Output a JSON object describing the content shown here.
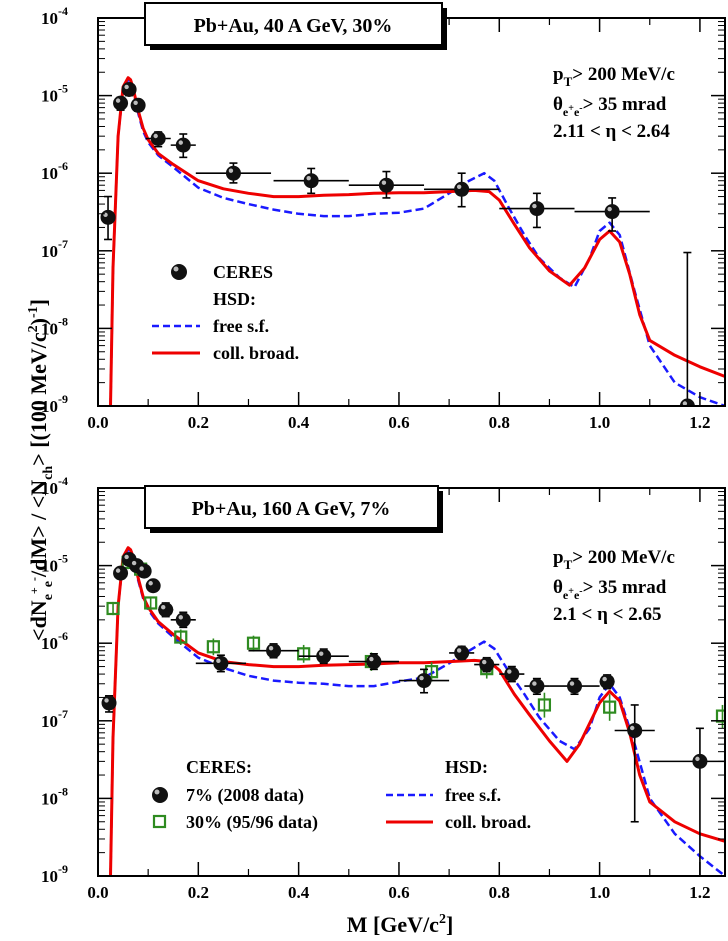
{
  "figure": {
    "ylabel_main": "<dN",
    "ylabel_sub": "e",
    "ylabel_sup1": "+",
    "ylabel_sub2": "e",
    "ylabel_sup2": "-",
    "ylabel_rest": "/dM> / <N",
    "ylabel_ch": "ch",
    "ylabel_end": "> [(100 MeV/c",
    "ylabel_2": "2",
    "ylabel_close": ")",
    "ylabel_m1": "-1",
    "ylabel_br": "]",
    "xlabel_main": "M [GeV/c",
    "xlabel_sup": "2",
    "xlabel_close": "]"
  },
  "colors": {
    "data_marker": "#111111",
    "free_sf": "#1a1aff",
    "coll_broad": "#ee0000",
    "ceres30": "#2e8b20"
  },
  "chart_data": [
    {
      "type": "line",
      "title": "Pb+Au, 40 A GeV, 30%",
      "annotations": {
        "pt": "p",
        "pt_sub": "T",
        "pt_rest": "> 200 MeV/c",
        "theta": "θ",
        "theta_sub": "e+e-",
        "theta_rest": "> 35 mrad",
        "eta": "2.11 < η < 2.64"
      },
      "xlim": [
        0.0,
        1.25
      ],
      "ylim_log10": [
        -9,
        -4
      ],
      "x_ticks": [
        "0.0",
        "0.2",
        "0.4",
        "0.6",
        "0.8",
        "1.0",
        "1.2"
      ],
      "x_tick_values": [
        0.0,
        0.2,
        0.4,
        0.6,
        0.8,
        1.0,
        1.2
      ],
      "y_ticks": [
        {
          "base": "10",
          "exp": "-9",
          "value": -9
        },
        {
          "base": "10",
          "exp": "-8",
          "value": -8
        },
        {
          "base": "10",
          "exp": "-7",
          "value": -7
        },
        {
          "base": "10",
          "exp": "-6",
          "value": -6
        },
        {
          "base": "10",
          "exp": "-5",
          "value": -5
        },
        {
          "base": "10",
          "exp": "-4",
          "value": -4
        }
      ],
      "legend": {
        "ceres": "CERES",
        "hsd": "HSD:",
        "free": "free s.f.",
        "coll": "coll. broad."
      },
      "ceres": [
        {
          "x": 0.02,
          "y": 2.7e-07,
          "xe": 0.0,
          "yl": 1.4e-07,
          "yh": 5e-07
        },
        {
          "x": 0.045,
          "y": 8e-06,
          "xe": 0.01,
          "yl": 6.5e-06,
          "yh": 9.5e-06
        },
        {
          "x": 0.062,
          "y": 1.2e-05,
          "xe": 0.008,
          "yl": 1e-05,
          "yh": 1.4e-05
        },
        {
          "x": 0.08,
          "y": 7.5e-06,
          "xe": 0.01,
          "yl": 6.3e-06,
          "yh": 8.8e-06
        },
        {
          "x": 0.12,
          "y": 2.8e-06,
          "xe": 0.025,
          "yl": 2.2e-06,
          "yh": 3.4e-06
        },
        {
          "x": 0.17,
          "y": 2.3e-06,
          "xe": 0.025,
          "yl": 1.6e-06,
          "yh": 3.2e-06
        },
        {
          "x": 0.27,
          "y": 1e-06,
          "xe": 0.075,
          "yl": 7.5e-07,
          "yh": 1.35e-06
        },
        {
          "x": 0.425,
          "y": 8e-07,
          "xe": 0.075,
          "yl": 5.5e-07,
          "yh": 1.15e-06
        },
        {
          "x": 0.575,
          "y": 7e-07,
          "xe": 0.075,
          "yl": 4.8e-07,
          "yh": 1.05e-06
        },
        {
          "x": 0.725,
          "y": 6.2e-07,
          "xe": 0.075,
          "yl": 3.7e-07,
          "yh": 1e-06
        },
        {
          "x": 0.875,
          "y": 3.5e-07,
          "xe": 0.075,
          "yl": 2e-07,
          "yh": 5.5e-07
        },
        {
          "x": 1.025,
          "y": 3.2e-07,
          "xe": 0.075,
          "yl": 1.8e-07,
          "yh": 4.8e-07
        },
        {
          "x": 1.175,
          "y": 1e-09,
          "xe": 0.075,
          "yl": 1e-09,
          "yh": 9.5e-08
        }
      ],
      "free_sf": {
        "x": [
          0.025,
          0.03,
          0.04,
          0.05,
          0.06,
          0.065,
          0.07,
          0.08,
          0.09,
          0.1,
          0.12,
          0.15,
          0.2,
          0.25,
          0.3,
          0.35,
          0.4,
          0.45,
          0.5,
          0.55,
          0.6,
          0.65,
          0.7,
          0.74,
          0.77,
          0.79,
          0.82,
          0.85,
          0.88,
          0.92,
          0.95,
          0.98,
          1.0,
          1.02,
          1.04,
          1.07,
          1.1,
          1.15,
          1.2,
          1.25
        ],
        "y": [
          1e-09,
          6e-08,
          3e-06,
          1.2e-05,
          1.6e-05,
          1.55e-05,
          1.2e-05,
          6e-06,
          3.5e-06,
          2.5e-06,
          1.7e-06,
          1.2e-06,
          6.5e-07,
          4.8e-07,
          4e-07,
          3.4e-07,
          3e-07,
          2.8e-07,
          2.8e-07,
          3e-07,
          3.1e-07,
          3.5e-07,
          5.5e-07,
          8e-07,
          1e-06,
          8e-07,
          3.5e-07,
          1.6e-07,
          8e-08,
          4.5e-08,
          3.4e-08,
          8e-08,
          1.8e-07,
          2.3e-07,
          1.6e-07,
          3e-08,
          6e-09,
          2e-09,
          1.3e-09,
          1e-09
        ]
      },
      "coll_broad": {
        "x": [
          0.025,
          0.03,
          0.04,
          0.05,
          0.06,
          0.065,
          0.07,
          0.08,
          0.09,
          0.1,
          0.12,
          0.15,
          0.2,
          0.25,
          0.3,
          0.35,
          0.4,
          0.45,
          0.5,
          0.55,
          0.6,
          0.65,
          0.7,
          0.75,
          0.78,
          0.8,
          0.83,
          0.86,
          0.9,
          0.94,
          0.97,
          1.0,
          1.02,
          1.04,
          1.06,
          1.08,
          1.1,
          1.15,
          1.2,
          1.25
        ],
        "y": [
          1e-09,
          6e-08,
          3e-06,
          1.3e-05,
          1.7e-05,
          1.6e-05,
          1.25e-05,
          6.5e-06,
          3.8e-06,
          2.7e-06,
          1.8e-06,
          1.3e-06,
          8e-07,
          6.3e-07,
          5.5e-07,
          5e-07,
          5e-07,
          5.2e-07,
          5.3e-07,
          5.5e-07,
          5.6e-07,
          5.6e-07,
          5.8e-07,
          6e-07,
          5.8e-07,
          4.5e-07,
          2.2e-07,
          1.1e-07,
          5.5e-08,
          3.6e-08,
          6e-08,
          1.4e-07,
          1.8e-07,
          1.3e-07,
          5e-08,
          1.5e-08,
          7e-09,
          4.5e-09,
          3.2e-09,
          2.4e-09
        ]
      }
    },
    {
      "type": "line",
      "title": "Pb+Au, 160 A GeV, 7%",
      "annotations": {
        "pt": "p",
        "pt_sub": "T",
        "pt_rest": "> 200 MeV/c",
        "theta": "θ",
        "theta_sub": "e+e-",
        "theta_rest": "> 35 mrad",
        "eta": "2.1 < η < 2.65"
      },
      "xlim": [
        0.0,
        1.25
      ],
      "ylim_log10": [
        -9,
        -4
      ],
      "x_ticks": [
        "0.0",
        "0.2",
        "0.4",
        "0.6",
        "0.8",
        "1.0",
        "1.2"
      ],
      "x_tick_values": [
        0.0,
        0.2,
        0.4,
        0.6,
        0.8,
        1.0,
        1.2
      ],
      "y_ticks": [
        {
          "base": "10",
          "exp": "-9",
          "value": -9
        },
        {
          "base": "10",
          "exp": "-8",
          "value": -8
        },
        {
          "base": "10",
          "exp": "-7",
          "value": -7
        },
        {
          "base": "10",
          "exp": "-6",
          "value": -6
        },
        {
          "base": "10",
          "exp": "-5",
          "value": -5
        },
        {
          "base": "10",
          "exp": "-4",
          "value": -4
        }
      ],
      "legend": {
        "ceres": "CERES:",
        "ceres7": "7%   (2008 data)",
        "ceres30": "30% (95/96 data)",
        "hsd": "HSD:",
        "free": "free s.f.",
        "coll": "coll. broad."
      },
      "ceres7": [
        {
          "x": 0.022,
          "y": 1.7e-07,
          "xe": 0.005,
          "yl": 1.3e-07,
          "yh": 2.1e-07
        },
        {
          "x": 0.045,
          "y": 8e-06,
          "xe": 0.01,
          "yl": 6.8e-06,
          "yh": 9.3e-06
        },
        {
          "x": 0.062,
          "y": 1.2e-05,
          "xe": 0.008,
          "yl": 1.05e-05,
          "yh": 1.35e-05
        },
        {
          "x": 0.077,
          "y": 1e-05,
          "xe": 0.008,
          "yl": 8.8e-06,
          "yh": 1.15e-05
        },
        {
          "x": 0.092,
          "y": 8.5e-06,
          "xe": 0.008,
          "yl": 7.3e-06,
          "yh": 9.8e-06
        },
        {
          "x": 0.11,
          "y": 5.5e-06,
          "xe": 0.01,
          "yl": 4.7e-06,
          "yh": 6.4e-06
        },
        {
          "x": 0.135,
          "y": 2.7e-06,
          "xe": 0.015,
          "yl": 2.2e-06,
          "yh": 3.3e-06
        },
        {
          "x": 0.17,
          "y": 2e-06,
          "xe": 0.025,
          "yl": 1.6e-06,
          "yh": 2.5e-06
        },
        {
          "x": 0.245,
          "y": 5.5e-07,
          "xe": 0.05,
          "yl": 4.3e-07,
          "yh": 7e-07
        },
        {
          "x": 0.35,
          "y": 8e-07,
          "xe": 0.05,
          "yl": 6.5e-07,
          "yh": 9.8e-07
        },
        {
          "x": 0.45,
          "y": 6.8e-07,
          "xe": 0.05,
          "yl": 5.5e-07,
          "yh": 8.4e-07
        },
        {
          "x": 0.55,
          "y": 5.8e-07,
          "xe": 0.05,
          "yl": 4.6e-07,
          "yh": 7.3e-07
        },
        {
          "x": 0.65,
          "y": 3.3e-07,
          "xe": 0.05,
          "yl": 2.3e-07,
          "yh": 4.6e-07
        },
        {
          "x": 0.725,
          "y": 7.5e-07,
          "xe": 0.025,
          "yl": 6.2e-07,
          "yh": 9.1e-07
        },
        {
          "x": 0.775,
          "y": 5.3e-07,
          "xe": 0.025,
          "yl": 4.3e-07,
          "yh": 6.5e-07
        },
        {
          "x": 0.825,
          "y": 4e-07,
          "xe": 0.025,
          "yl": 3.2e-07,
          "yh": 5e-07
        },
        {
          "x": 0.875,
          "y": 2.8e-07,
          "xe": 0.025,
          "yl": 2.2e-07,
          "yh": 3.5e-07
        },
        {
          "x": 0.95,
          "y": 2.8e-07,
          "xe": 0.05,
          "yl": 2.2e-07,
          "yh": 3.5e-07
        },
        {
          "x": 1.015,
          "y": 3.2e-07,
          "xe": 0.015,
          "yl": 2.6e-07,
          "yh": 3.9e-07
        },
        {
          "x": 1.07,
          "y": 7.5e-08,
          "xe": 0.04,
          "yl": 5e-09,
          "yh": 1.6e-07
        },
        {
          "x": 1.2,
          "y": 3e-08,
          "xe": 0.1,
          "yl": 1e-09,
          "yh": 8e-08
        }
      ],
      "ceres30": [
        {
          "x": 0.03,
          "y": 2.8e-06,
          "xe": 0.0,
          "yl": 2.3e-06,
          "yh": 3.4e-06
        },
        {
          "x": 0.06,
          "y": 1.1e-05,
          "xe": 0.0,
          "yl": 9e-06,
          "yh": 1.3e-05
        },
        {
          "x": 0.085,
          "y": 9e-06,
          "xe": 0.0,
          "yl": 7.5e-06,
          "yh": 1.05e-05
        },
        {
          "x": 0.105,
          "y": 3.3e-06,
          "xe": 0.0,
          "yl": 2.7e-06,
          "yh": 4e-06
        },
        {
          "x": 0.165,
          "y": 1.2e-06,
          "xe": 0.0,
          "yl": 9.5e-07,
          "yh": 1.5e-06
        },
        {
          "x": 0.23,
          "y": 9e-07,
          "xe": 0.0,
          "yl": 7e-07,
          "yh": 1.15e-06
        },
        {
          "x": 0.31,
          "y": 1e-06,
          "xe": 0.0,
          "yl": 7.8e-07,
          "yh": 1.25e-06
        },
        {
          "x": 0.41,
          "y": 7.3e-07,
          "xe": 0.0,
          "yl": 5.6e-07,
          "yh": 9.5e-07
        },
        {
          "x": 0.545,
          "y": 5.8e-07,
          "xe": 0.0,
          "yl": 4.4e-07,
          "yh": 7.6e-07
        },
        {
          "x": 0.665,
          "y": 4.3e-07,
          "xe": 0.0,
          "yl": 3.2e-07,
          "yh": 5.7e-07
        },
        {
          "x": 0.775,
          "y": 4.7e-07,
          "xe": 0.0,
          "yl": 3.5e-07,
          "yh": 6.3e-07
        },
        {
          "x": 0.89,
          "y": 1.6e-07,
          "xe": 0.0,
          "yl": 1.1e-07,
          "yh": 2.3e-07
        },
        {
          "x": 1.02,
          "y": 1.5e-07,
          "xe": 0.0,
          "yl": 1e-07,
          "yh": 2.2e-07
        },
        {
          "x": 1.245,
          "y": 1.15e-07,
          "xe": 0.0,
          "yl": 8e-08,
          "yh": 1.6e-07
        }
      ],
      "free_sf": {
        "x": [
          0.025,
          0.03,
          0.04,
          0.05,
          0.06,
          0.065,
          0.07,
          0.08,
          0.09,
          0.1,
          0.12,
          0.15,
          0.2,
          0.25,
          0.3,
          0.35,
          0.4,
          0.45,
          0.5,
          0.55,
          0.6,
          0.65,
          0.7,
          0.74,
          0.77,
          0.79,
          0.82,
          0.85,
          0.88,
          0.92,
          0.95,
          0.98,
          1.0,
          1.02,
          1.04,
          1.07,
          1.1,
          1.15,
          1.2,
          1.25
        ],
        "y": [
          1e-09,
          6e-08,
          3e-06,
          1.2e-05,
          1.6e-05,
          1.55e-05,
          1.2e-05,
          6.5e-06,
          3.8e-06,
          2.7e-06,
          1.8e-06,
          1.2e-06,
          6.5e-07,
          4.8e-07,
          3.8e-07,
          3.3e-07,
          3.1e-07,
          3e-07,
          2.8e-07,
          2.8e-07,
          3.2e-07,
          3.6e-07,
          5.5e-07,
          8e-07,
          1.05e-06,
          8.5e-07,
          4.2e-07,
          2.2e-07,
          1.1e-07,
          5.5e-08,
          4.3e-08,
          8e-08,
          2e-07,
          3e-07,
          2e-07,
          5e-08,
          1e-08,
          3.5e-09,
          1.8e-09,
          1e-09
        ]
      },
      "coll_broad": {
        "x": [
          0.025,
          0.03,
          0.04,
          0.05,
          0.06,
          0.065,
          0.07,
          0.08,
          0.09,
          0.1,
          0.12,
          0.15,
          0.2,
          0.25,
          0.3,
          0.35,
          0.4,
          0.45,
          0.5,
          0.55,
          0.6,
          0.65,
          0.7,
          0.75,
          0.78,
          0.8,
          0.83,
          0.86,
          0.9,
          0.935,
          0.96,
          1.0,
          1.02,
          1.04,
          1.06,
          1.08,
          1.1,
          1.15,
          1.2,
          1.25
        ],
        "y": [
          1e-09,
          6e-08,
          3e-06,
          1.3e-05,
          1.7e-05,
          1.6e-05,
          1.3e-05,
          7e-06,
          4e-06,
          2.9e-06,
          1.9e-06,
          1.3e-06,
          7.5e-07,
          5.8e-07,
          5.3e-07,
          5e-07,
          5e-07,
          5.2e-07,
          5.3e-07,
          5.4e-07,
          5.6e-07,
          5.6e-07,
          5.8e-07,
          6e-07,
          5.8e-07,
          4.5e-07,
          2.2e-07,
          1.2e-07,
          5.5e-08,
          3e-08,
          5e-08,
          1.7e-07,
          2.4e-07,
          1.8e-07,
          7e-08,
          2e-08,
          9e-09,
          5e-09,
          3.5e-09,
          2.8e-09
        ]
      }
    }
  ]
}
